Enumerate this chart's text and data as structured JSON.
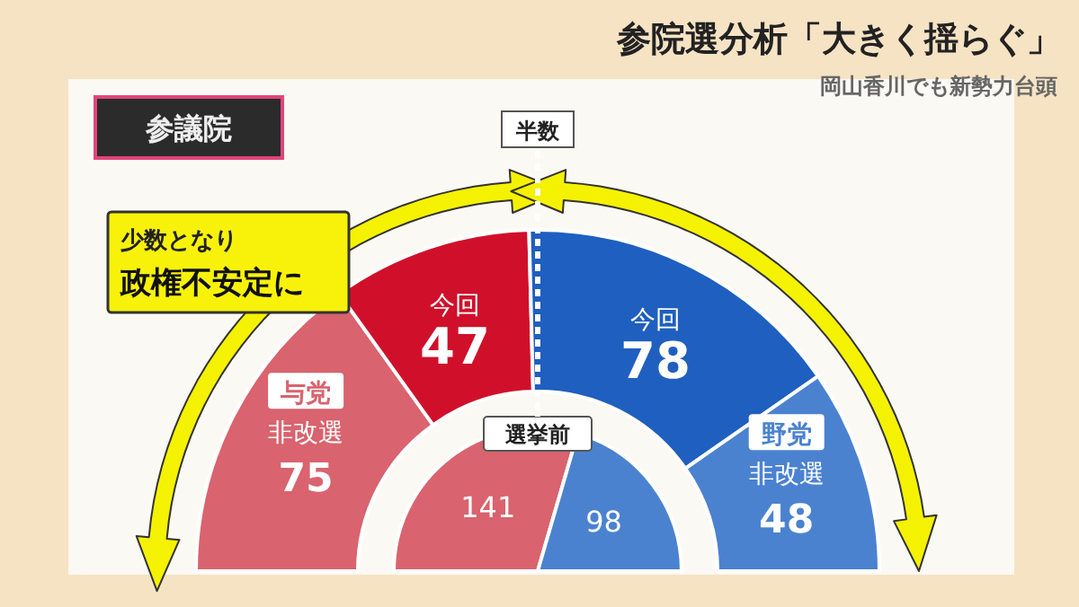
{
  "chart_data": [
    {
      "type": "donut",
      "title": "参院選分析「大きく揺らぐ」",
      "subtitle": "岡山香川でも新勢力台頭",
      "categories": [
        "非改選",
        "今回",
        "今回",
        "非改選"
      ],
      "values": [
        75,
        47,
        78,
        48
      ],
      "colors": [
        "#d9636e",
        "#d0102a",
        "#1f5fbf",
        "#4a82d0"
      ],
      "data_labels": true,
      "annotations": [
        "参議院",
        "半数",
        "少数となり",
        "政権不安定に",
        "与党",
        "野党"
      ]
    },
    {
      "type": "pie",
      "title": "選挙前",
      "categories": [
        null,
        null
      ],
      "values": [
        141,
        98
      ],
      "colors": [
        "#d9636e",
        "#4a82d0"
      ],
      "data_labels": true
    }
  ]
}
